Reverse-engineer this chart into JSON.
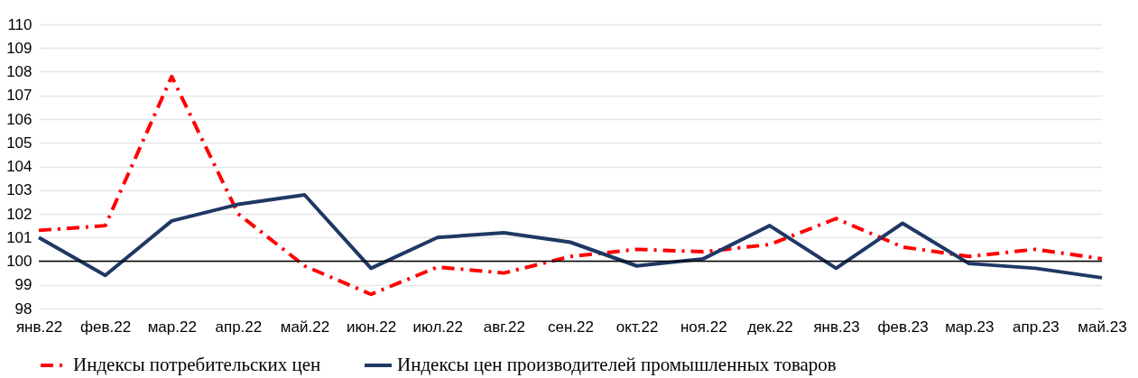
{
  "chart_data": {
    "type": "line",
    "categories": [
      "янв.22",
      "фев.22",
      "мар.22",
      "апр.22",
      "май.22",
      "июн.22",
      "июл.22",
      "авг.22",
      "сен.22",
      "окт.22",
      "ноя.22",
      "дек.22",
      "янв.23",
      "фев.23",
      "мар.23",
      "апр.23",
      "май.23"
    ],
    "series": [
      {
        "name": "Индексы потребительских цен",
        "color": "#ff0000",
        "line_style": "dashed",
        "values": [
          101.3,
          101.5,
          107.8,
          102.0,
          99.8,
          98.6,
          99.75,
          99.5,
          100.2,
          100.5,
          100.4,
          100.7,
          101.8,
          100.6,
          100.2,
          100.5,
          100.1
        ]
      },
      {
        "name": "Индексы цен производителей промышленных товаров",
        "color": "#1f3864",
        "line_style": "solid",
        "values": [
          101.0,
          99.4,
          101.7,
          102.4,
          102.8,
          99.7,
          101.0,
          101.2,
          100.8,
          99.8,
          100.1,
          101.5,
          99.7,
          101.6,
          99.9,
          99.7,
          99.3
        ]
      }
    ],
    "ylim": [
      98,
      110
    ],
    "yticks": [
      98,
      99,
      100,
      101,
      102,
      103,
      104,
      105,
      106,
      107,
      108,
      109,
      110
    ],
    "ref_lines": [
      {
        "axis": "y",
        "value": 100,
        "color": "#000000"
      }
    ],
    "grid": "y",
    "legend": "bottom",
    "marker": "none"
  }
}
